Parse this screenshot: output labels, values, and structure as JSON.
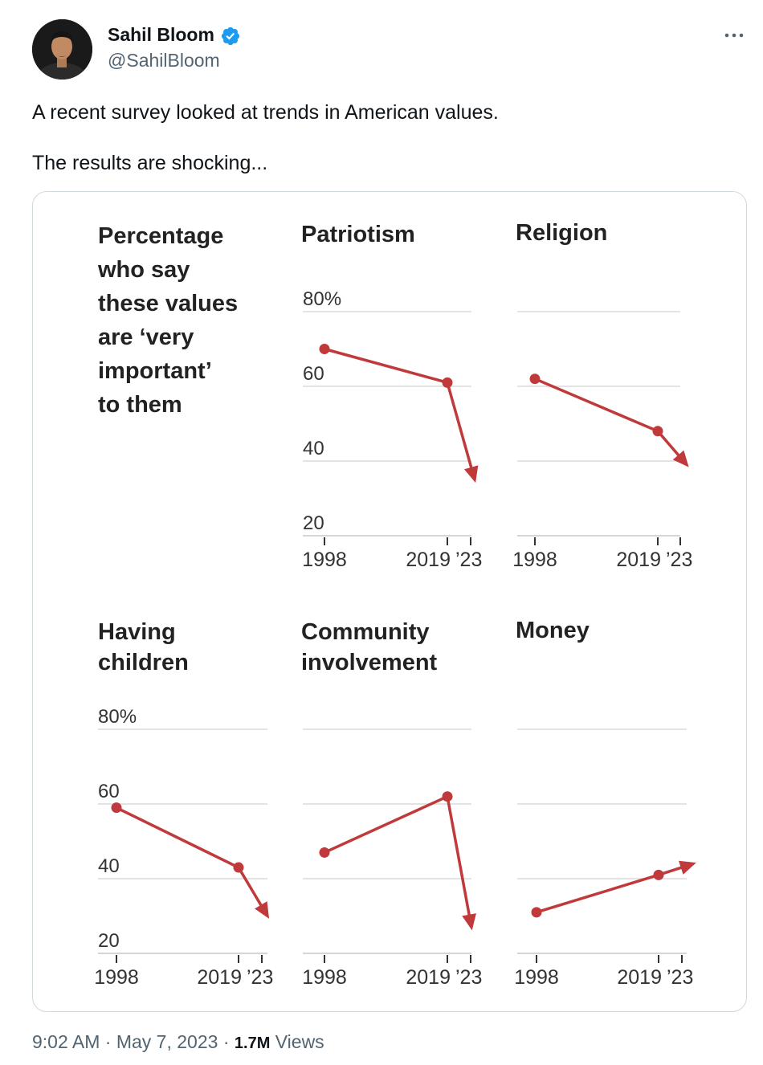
{
  "tweet": {
    "author_name": "Sahil Bloom",
    "handle": "@SahilBloom",
    "text_line1": "A recent survey looked at trends in American values.",
    "text_line2": "The results are shocking...",
    "time": "9:02 AM",
    "date": "May 7, 2023",
    "views_count": "1.7M",
    "views_label": "Views",
    "separator": "·"
  },
  "colors": {
    "line": "#c0393b",
    "grid": "#e3e3e3",
    "verified": "#1d9bf0"
  },
  "icons": {
    "verified": "verified-badge-icon",
    "more": "more-options-icon"
  },
  "chart_data": {
    "type": "line",
    "title": "Percentage who say these values are ‘very important’ to them",
    "title_lines": [
      "Percentage",
      "who say",
      "these values",
      "are ‘very",
      "important’",
      "to them"
    ],
    "x": [
      1998,
      2019,
      2023
    ],
    "x_tick_labels": [
      "1998",
      "2019",
      "’23"
    ],
    "y_ticks": [
      "80%",
      "60",
      "40",
      "20"
    ],
    "ylim": [
      20,
      80
    ],
    "grid": true,
    "panels": [
      {
        "name": "Patriotism",
        "name_lines": [
          "Patriotism"
        ],
        "values": [
          70,
          61,
          35
        ],
        "show_y_labels": true
      },
      {
        "name": "Religion",
        "name_lines": [
          "Religion"
        ],
        "values": [
          62,
          48,
          39
        ],
        "show_y_labels": false
      },
      {
        "name": "Having children",
        "name_lines": [
          "Having",
          "children"
        ],
        "values": [
          59,
          43,
          30
        ],
        "show_y_labels": true
      },
      {
        "name": "Community involvement",
        "name_lines": [
          "Community",
          "involvement"
        ],
        "values": [
          47,
          62,
          27
        ],
        "show_y_labels": false
      },
      {
        "name": "Money",
        "name_lines": [
          "Money"
        ],
        "values": [
          31,
          41,
          44
        ],
        "show_y_labels": false
      }
    ]
  }
}
